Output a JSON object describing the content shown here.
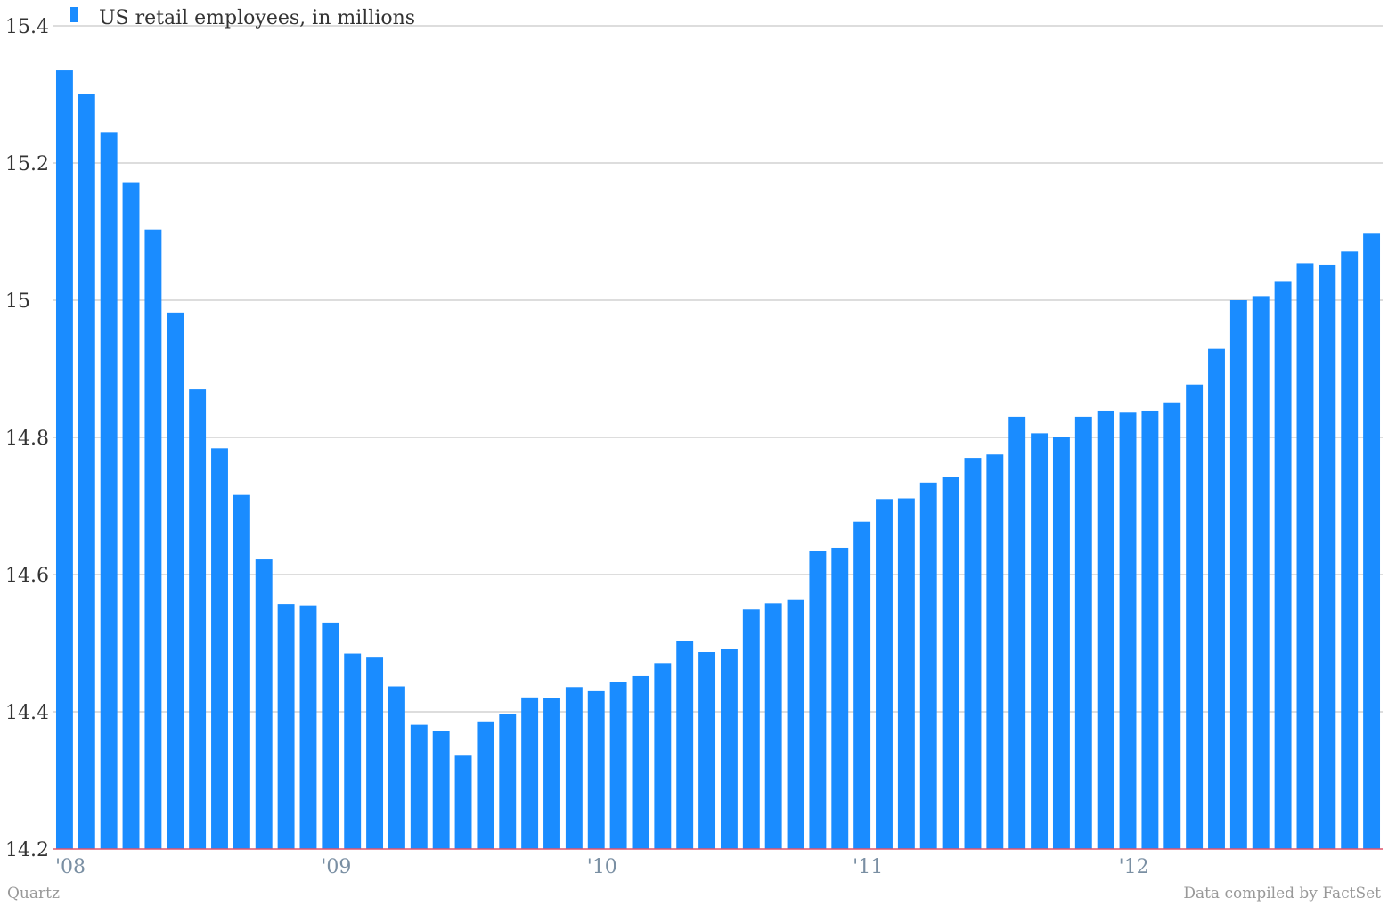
{
  "footer": {
    "source_left": "Quartz",
    "source_right": "Data compiled by FactSet"
  },
  "chart_data": {
    "type": "bar",
    "series": [
      {
        "name": "US retail employees, in millions",
        "color": "#1a8cff",
        "values": [
          15.335,
          15.3,
          15.245,
          15.172,
          15.103,
          14.982,
          14.87,
          14.784,
          14.716,
          14.622,
          14.557,
          14.555,
          14.53,
          14.485,
          14.479,
          14.437,
          14.381,
          14.372,
          14.336,
          14.386,
          14.397,
          14.421,
          14.42,
          14.436,
          14.43,
          14.443,
          14.452,
          14.471,
          14.503,
          14.487,
          14.492,
          14.549,
          14.558,
          14.564,
          14.634,
          14.639,
          14.677,
          14.71,
          14.711,
          14.734,
          14.742,
          14.77,
          14.775,
          14.83,
          14.806,
          14.8,
          14.83,
          14.839,
          14.836,
          14.839,
          14.851,
          14.877,
          14.929,
          15.0,
          15.006,
          15.028,
          15.054,
          15.052,
          15.071,
          15.097
        ]
      }
    ],
    "x_tick_labels": [
      "'08",
      "'09",
      "'10",
      "'11",
      "'12"
    ],
    "x_tick_positions": [
      0,
      12,
      24,
      36,
      48
    ],
    "y_ticks": [
      "14.2",
      "14.4",
      "14.6",
      "14.8",
      "15",
      "15.2",
      "15.4"
    ],
    "ylim": [
      14.2,
      15.4
    ],
    "grid": true,
    "legend_position": "top-left",
    "baseline_color": "#e0556b",
    "grid_color": "#bbbbbb"
  }
}
